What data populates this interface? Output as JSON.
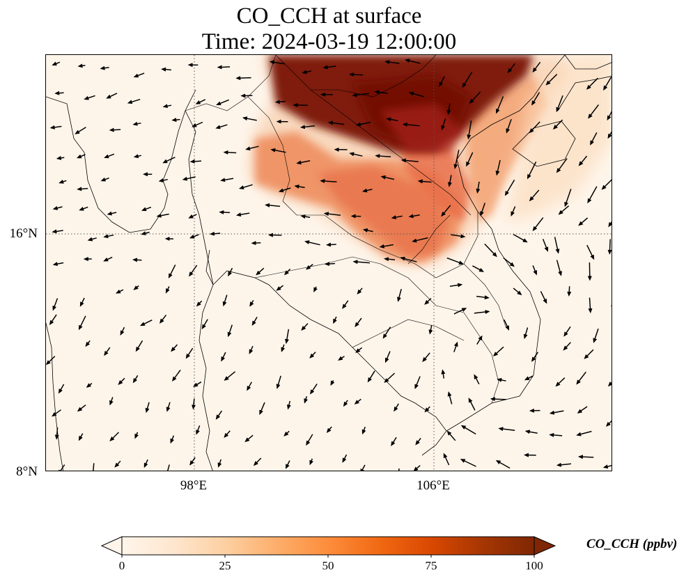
{
  "title_line1": "CO_CCH at surface",
  "title_line2": "Time: 2024-03-19 12:00:00",
  "lat_ticks": [
    {
      "value": 16,
      "label": "16°N"
    },
    {
      "value": 8,
      "label": "8°N"
    }
  ],
  "lon_ticks": [
    {
      "value": 98,
      "label": "98°E"
    },
    {
      "value": 106,
      "label": "106°E"
    }
  ],
  "map_extent": {
    "lon_min": 93.05,
    "lon_max": 111.95,
    "lat_min": 8,
    "lat_max": 21.9
  },
  "colorbar": {
    "label": "CO_CCH (ppbv)",
    "ticks": [
      0,
      25,
      50,
      75,
      100
    ],
    "tick_labels": [
      "0",
      "25",
      "50",
      "75",
      "100"
    ],
    "range": [
      0,
      100
    ],
    "extend": "both",
    "colors": [
      "#fff5eb",
      "#fee6ce",
      "#fdd0a2",
      "#fdae6b",
      "#fd8d3c",
      "#f16913",
      "#d94801",
      "#a63603",
      "#7f2704"
    ]
  },
  "colormap": "OrRd",
  "gridlines": "dotted"
}
